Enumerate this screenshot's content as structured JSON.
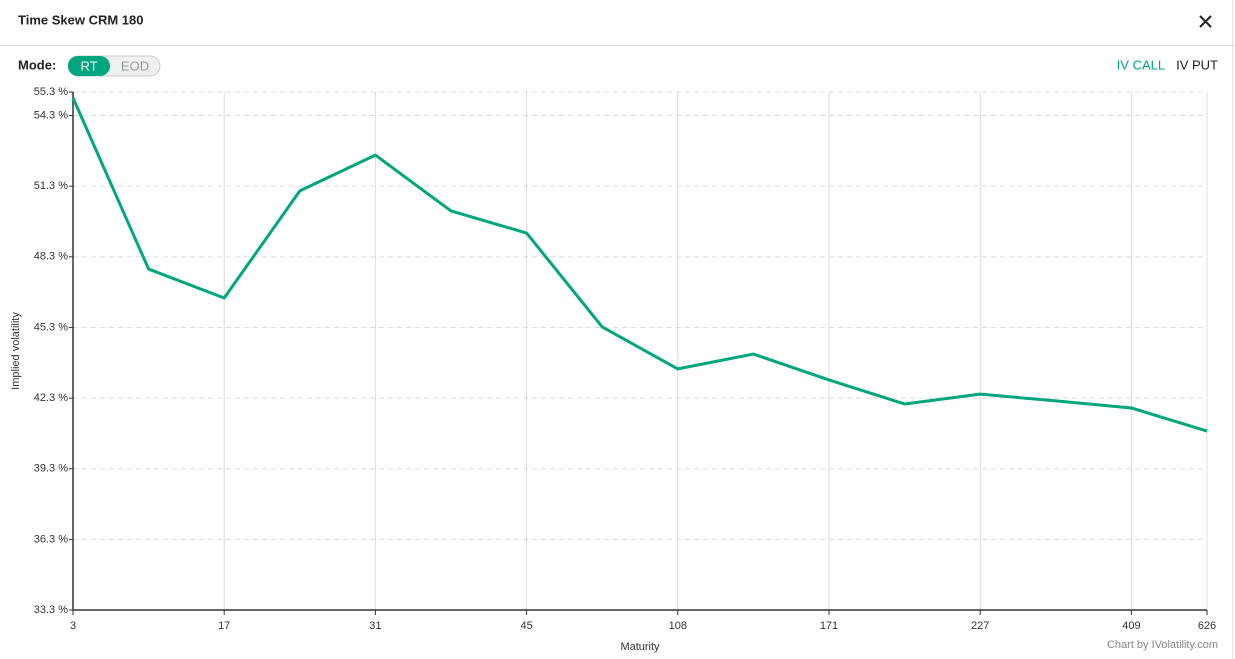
{
  "header": {
    "title": "Time Skew CRM 180"
  },
  "mode": {
    "label": "Mode:",
    "options": [
      "RT",
      "EOD"
    ],
    "active": 0
  },
  "chart_data": {
    "type": "line",
    "x_label": "Maturity",
    "y_label": "Implied volatility",
    "categories": [
      "3",
      null,
      "17",
      null,
      "31",
      null,
      "45",
      null,
      "108",
      null,
      "171",
      null,
      "227",
      null,
      "409",
      "626"
    ],
    "series": [
      {
        "name": "IV CALL",
        "color": "#00a77e",
        "values": [
          55.05,
          47.78,
          46.55,
          51.1,
          52.62,
          50.25,
          49.31,
          45.32,
          43.54,
          44.17,
          43.07,
          42.05,
          42.47,
          42.18,
          41.88,
          40.9
        ]
      },
      {
        "name": "IV PUT",
        "color": "#222222",
        "values": [
          null,
          null,
          null,
          null,
          null,
          null,
          null,
          null,
          null,
          null,
          null,
          null,
          null,
          null,
          null,
          null
        ]
      }
    ],
    "ylim": [
      33.3,
      55.3
    ],
    "yticks": [
      {
        "value": 33.3,
        "label": "33.3 %"
      },
      {
        "value": 36.3,
        "label": "36.3 %"
      },
      {
        "value": 39.3,
        "label": "39.3 %"
      },
      {
        "value": 42.3,
        "label": "42.3 %"
      },
      {
        "value": 45.3,
        "label": "45.3 %"
      },
      {
        "value": 48.3,
        "label": "48.3 %"
      },
      {
        "value": 51.3,
        "label": "51.3 %"
      },
      {
        "value": 54.3,
        "label": "54.3 %"
      },
      {
        "value": 55.3,
        "label": "55.3 %"
      }
    ],
    "grid": true
  },
  "credit": "Chart by IVolatility.com"
}
